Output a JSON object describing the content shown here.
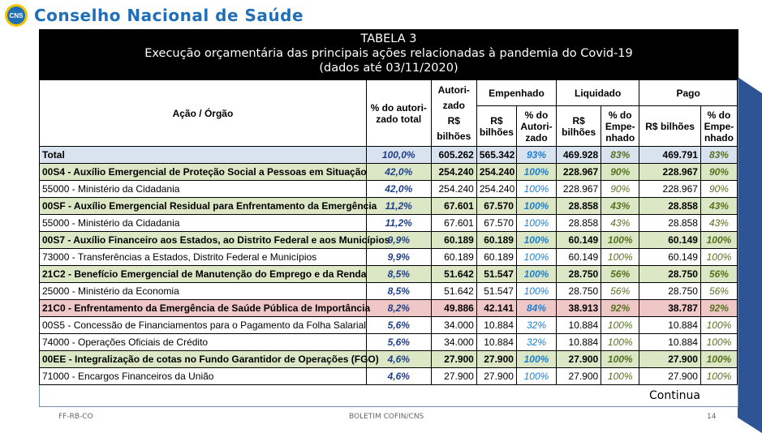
{
  "brand": {
    "logo_text": "CNS",
    "name": "Conselho Nacional de Saúde"
  },
  "table_title": {
    "line1": "TABELA 3",
    "line2": "Execução orçamentária das principais ações relacionadas à pandemia do Covid-19",
    "line3": "(dados até 03/11/2020)"
  },
  "headers": {
    "acao": "Ação / Órgão",
    "pct_autorizado_total": "% do autori-zado total",
    "autorizado": "Autori-zado",
    "autorizado_unit": "R$ bilhões",
    "empenhado": "Empenhado",
    "liquidado": "Liquidado",
    "pago": "Pago",
    "rs_bilhoes": "R$ bilhões",
    "pct_do_autorizado": "% do Autori-zado",
    "pct_do_empenhado": "% do Empe-nhado"
  },
  "rows": [
    {
      "label": "Total",
      "pct": "100,0%",
      "autorizado": "605.262",
      "empenhado": "565.342",
      "empenhado_pct": "93%",
      "liquidado": "469.928",
      "liquidado_pct": "83%",
      "pago": "469.791",
      "pago_pct": "83%"
    },
    {
      "label": "00S4 - Auxílio Emergencial de Proteção Social a Pessoas em Situação",
      "pct": "42,0%",
      "autorizado": "254.240",
      "empenhado": "254.240",
      "empenhado_pct": "100%",
      "liquidado": "228.967",
      "liquidado_pct": "90%",
      "pago": "228.967",
      "pago_pct": "90%"
    },
    {
      "label": "55000 - Ministério da Cidadania",
      "pct": "42,0%",
      "autorizado": "254.240",
      "empenhado": "254.240",
      "empenhado_pct": "100%",
      "liquidado": "228.967",
      "liquidado_pct": "90%",
      "pago": "228.967",
      "pago_pct": "90%"
    },
    {
      "label": "00SF - Auxílio Emergencial Residual para Enfrentamento da Emergência",
      "pct": "11,2%",
      "autorizado": "67.601",
      "empenhado": "67.570",
      "empenhado_pct": "100%",
      "liquidado": "28.858",
      "liquidado_pct": "43%",
      "pago": "28.858",
      "pago_pct": "43%"
    },
    {
      "label": "55000 - Ministério da Cidadania",
      "pct": "11,2%",
      "autorizado": "67.601",
      "empenhado": "67.570",
      "empenhado_pct": "100%",
      "liquidado": "28.858",
      "liquidado_pct": "43%",
      "pago": "28.858",
      "pago_pct": "43%"
    },
    {
      "label": "00S7 - Auxílio Financeiro aos Estados, ao Distrito Federal e aos Municípios",
      "pct": "9,9%",
      "autorizado": "60.189",
      "empenhado": "60.189",
      "empenhado_pct": "100%",
      "liquidado": "60.149",
      "liquidado_pct": "100%",
      "pago": "60.149",
      "pago_pct": "100%"
    },
    {
      "label": "73000 - Transferências a Estados, Distrito Federal e Municípios",
      "pct": "9,9%",
      "autorizado": "60.189",
      "empenhado": "60.189",
      "empenhado_pct": "100%",
      "liquidado": "60.149",
      "liquidado_pct": "100%",
      "pago": "60.149",
      "pago_pct": "100%"
    },
    {
      "label": "21C2 - Benefício Emergencial de Manutenção do Emprego e da Renda",
      "pct": "8,5%",
      "autorizado": "51.642",
      "empenhado": "51.547",
      "empenhado_pct": "100%",
      "liquidado": "28.750",
      "liquidado_pct": "56%",
      "pago": "28.750",
      "pago_pct": "56%"
    },
    {
      "label": "25000 - Ministério da Economia",
      "pct": "8,5%",
      "autorizado": "51.642",
      "empenhado": "51.547",
      "empenhado_pct": "100%",
      "liquidado": "28.750",
      "liquidado_pct": "56%",
      "pago": "28.750",
      "pago_pct": "56%"
    },
    {
      "label": "21C0 - Enfrentamento da Emergência de Saúde Pública de Importância",
      "pct": "8,2%",
      "autorizado": "49.886",
      "empenhado": "42.141",
      "empenhado_pct": "84%",
      "liquidado": "38.913",
      "liquidado_pct": "92%",
      "pago": "38.787",
      "pago_pct": "92%"
    },
    {
      "label": "00S5 - Concessão de Financiamentos para o Pagamento da Folha Salarial",
      "pct": "5,6%",
      "autorizado": "34.000",
      "empenhado": "10.884",
      "empenhado_pct": "32%",
      "liquidado": "10.884",
      "liquidado_pct": "100%",
      "pago": "10.884",
      "pago_pct": "100%"
    },
    {
      "label": "74000 - Operações Oficiais de Crédito",
      "pct": "5,6%",
      "autorizado": "34.000",
      "empenhado": "10.884",
      "empenhado_pct": "32%",
      "liquidado": "10.884",
      "liquidado_pct": "100%",
      "pago": "10.884",
      "pago_pct": "100%"
    },
    {
      "label": "00EE - Integralização de cotas no Fundo Garantidor de Operações (FGO)",
      "pct": "4,6%",
      "autorizado": "27.900",
      "empenhado": "27.900",
      "empenhado_pct": "100%",
      "liquidado": "27.900",
      "liquidado_pct": "100%",
      "pago": "27.900",
      "pago_pct": "100%"
    },
    {
      "label": "71000 - Encargos Financeiros da União",
      "pct": "4,6%",
      "autorizado": "27.900",
      "empenhado": "27.900",
      "empenhado_pct": "100%",
      "liquidado": "27.900",
      "liquidado_pct": "100%",
      "pago": "27.900",
      "pago_pct": "100%"
    }
  ],
  "row_styles": [
    "total",
    "green",
    "plain",
    "green",
    "plain",
    "green",
    "plain",
    "green",
    "plain",
    "red",
    "plain",
    "plain",
    "green",
    "plain"
  ],
  "continua": "Continua",
  "footer": {
    "left": "FF-RB-CO",
    "center": "BOLETIM COFIN/CNS",
    "page": "14"
  },
  "colors": {
    "brand": "#1f6fb8",
    "total_row": "#d9e2ef",
    "green_row": "#dce8c5",
    "red_row": "#f0c7c7"
  }
}
